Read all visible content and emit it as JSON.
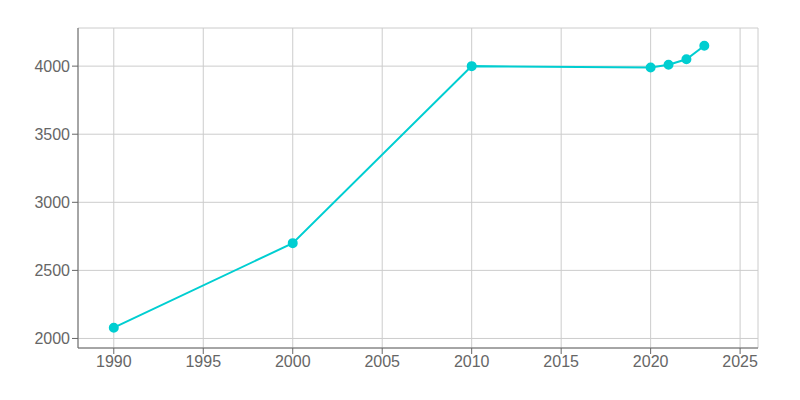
{
  "chart_data": {
    "type": "line",
    "x": [
      1990,
      2000,
      2010,
      2020,
      2021,
      2022,
      2023
    ],
    "values": [
      2079,
      2700,
      4000,
      3990,
      4010,
      4050,
      4150
    ],
    "color": "#00CED1",
    "xlim": [
      1988,
      2026
    ],
    "ylim": [
      1930,
      4280
    ],
    "xticks": [
      1990,
      1995,
      2000,
      2005,
      2010,
      2015,
      2020,
      2025
    ],
    "yticks": [
      2000,
      2500,
      3000,
      3500,
      4000
    ],
    "grid": true,
    "marker": "circle"
  }
}
